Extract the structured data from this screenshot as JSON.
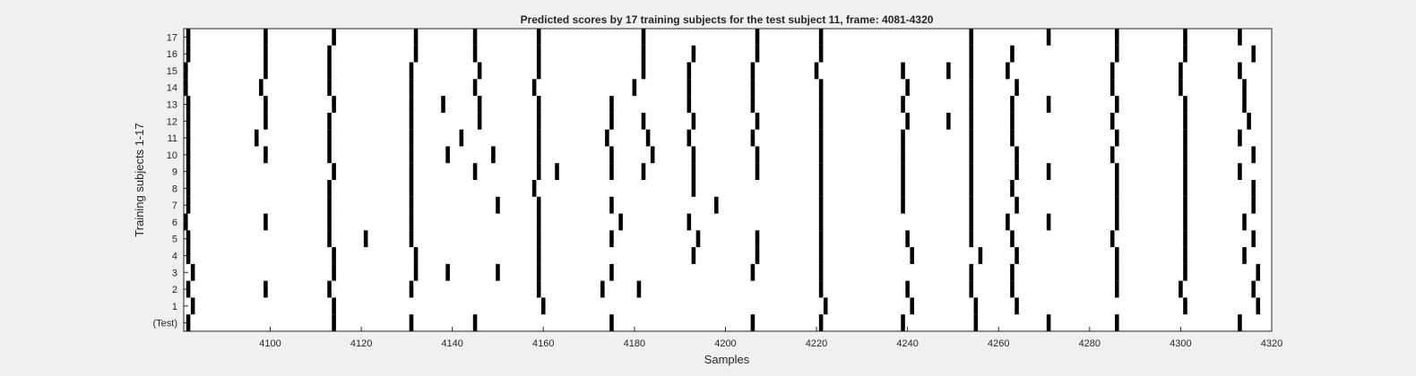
{
  "chart_data": {
    "type": "raster",
    "title": "Predicted scores by 17 training subjects for the test subject 11, frame: 4081-4320",
    "xlabel": "Samples",
    "ylabel": "Training subjects 1-17",
    "xlim": [
      4081,
      4320
    ],
    "x_ticks": [
      4100,
      4120,
      4140,
      4160,
      4180,
      4200,
      4220,
      4240,
      4260,
      4280,
      4300,
      4320
    ],
    "y_tick_labels": [
      "(Test)",
      "1",
      "2",
      "3",
      "4",
      "5",
      "6",
      "7",
      "8",
      "9",
      "10",
      "11",
      "12",
      "13",
      "14",
      "15",
      "16",
      "17"
    ],
    "mark_color": "#000000",
    "rows": [
      {
        "label": "(Test)",
        "events": [
          4082,
          4114,
          4131,
          4145,
          4175,
          4206,
          4221,
          4239,
          4255,
          4271,
          4286,
          4313
        ]
      },
      {
        "label": "1",
        "events": [
          4083,
          4114,
          4160,
          4222,
          4241,
          4255,
          4264,
          4301,
          4317
        ]
      },
      {
        "label": "2",
        "events": [
          4082,
          4099,
          4113,
          4131,
          4159,
          4173,
          4181,
          4221,
          4240,
          4254,
          4263,
          4286,
          4300,
          4316
        ]
      },
      {
        "label": "3",
        "events": [
          4083,
          4114,
          4132,
          4139,
          4150,
          4159,
          4175,
          4206,
          4221,
          4254,
          4263,
          4286,
          4301,
          4317
        ]
      },
      {
        "label": "4",
        "events": [
          4082,
          4114,
          4132,
          4159,
          4193,
          4207,
          4221,
          4241,
          4256,
          4264,
          4286,
          4301,
          4314
        ]
      },
      {
        "label": "5",
        "events": [
          4082,
          4113,
          4121,
          4131,
          4159,
          4175,
          4194,
          4207,
          4221,
          4240,
          4254,
          4263,
          4285,
          4301,
          4316
        ]
      },
      {
        "label": "6",
        "events": [
          4081,
          4099,
          4113,
          4131,
          4159,
          4177,
          4192,
          4221,
          4254,
          4262,
          4271,
          4286,
          4301,
          4314
        ]
      },
      {
        "label": "7",
        "events": [
          4082,
          4113,
          4131,
          4150,
          4159,
          4175,
          4198,
          4221,
          4239,
          4254,
          4264,
          4286,
          4301,
          4316
        ]
      },
      {
        "label": "8",
        "events": [
          4082,
          4113,
          4131,
          4158,
          4193,
          4221,
          4239,
          4254,
          4263,
          4286,
          4301,
          4316
        ]
      },
      {
        "label": "9",
        "events": [
          4082,
          4114,
          4131,
          4145,
          4159,
          4163,
          4175,
          4182,
          4193,
          4207,
          4221,
          4239,
          4254,
          4264,
          4271,
          4286,
          4301,
          4313
        ]
      },
      {
        "label": "10",
        "events": [
          4082,
          4099,
          4113,
          4131,
          4139,
          4149,
          4159,
          4175,
          4184,
          4193,
          4207,
          4221,
          4239,
          4254,
          4264,
          4285,
          4301,
          4316
        ]
      },
      {
        "label": "11",
        "events": [
          4082,
          4097,
          4113,
          4131,
          4142,
          4159,
          4174,
          4183,
          4192,
          4206,
          4221,
          4239,
          4254,
          4263,
          4286,
          4301,
          4313
        ]
      },
      {
        "label": "12",
        "events": [
          4082,
          4099,
          4113,
          4131,
          4146,
          4159,
          4175,
          4182,
          4193,
          4207,
          4221,
          4240,
          4249,
          4254,
          4263,
          4285,
          4301,
          4315
        ]
      },
      {
        "label": "13",
        "events": [
          4082,
          4099,
          4114,
          4131,
          4138,
          4146,
          4159,
          4175,
          4192,
          4206,
          4221,
          4239,
          4254,
          4263,
          4271,
          4286,
          4301,
          4314
        ]
      },
      {
        "label": "14",
        "events": [
          4081,
          4098,
          4113,
          4131,
          4145,
          4158,
          4180,
          4192,
          4206,
          4221,
          4240,
          4254,
          4264,
          4285,
          4300,
          4314
        ]
      },
      {
        "label": "15",
        "events": [
          4081,
          4099,
          4113,
          4131,
          4146,
          4159,
          4182,
          4192,
          4206,
          4220,
          4239,
          4249,
          4254,
          4262,
          4285,
          4300,
          4313
        ]
      },
      {
        "label": "16",
        "events": [
          4082,
          4099,
          4113,
          4132,
          4145,
          4159,
          4182,
          4193,
          4207,
          4221,
          4254,
          4263,
          4286,
          4301,
          4316
        ]
      },
      {
        "label": "17",
        "events": [
          4082,
          4099,
          4114,
          4132,
          4145,
          4159,
          4182,
          4207,
          4221,
          4254,
          4271,
          4286,
          4301,
          4313
        ]
      }
    ]
  }
}
